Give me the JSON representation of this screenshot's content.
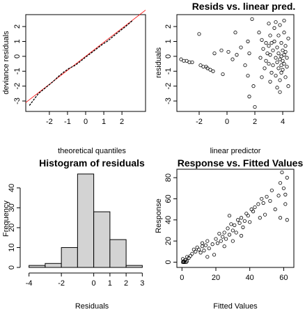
{
  "chart_data": [
    {
      "type": "line",
      "title": "",
      "xlabel": "theoretical quantiles",
      "ylabel": "deviance residuals",
      "xlim": [
        -3.3,
        3.3
      ],
      "ylim": [
        -3.7,
        2.8
      ],
      "xticks": [
        -2,
        -1,
        0,
        1,
        2
      ],
      "yticks": [
        -3,
        -2,
        -1,
        0,
        1,
        2
      ],
      "series": [
        {
          "role": "reference",
          "color": "#ff0000",
          "x": [
            -3.3,
            3.3
          ],
          "y": [
            -3.1,
            3.1
          ]
        },
        {
          "role": "qq",
          "color": "#000000",
          "x": [
            -3.1,
            -2.6,
            -2.2,
            -1.8,
            -1.5,
            -1.2,
            -0.9,
            -0.6,
            -0.3,
            0.0,
            0.3,
            0.6,
            0.9,
            1.2,
            1.5,
            1.8,
            2.2,
            2.6
          ],
          "y": [
            -3.3,
            -2.5,
            -2.1,
            -1.7,
            -1.35,
            -1.05,
            -0.8,
            -0.62,
            -0.35,
            -0.05,
            0.22,
            0.5,
            0.78,
            1.02,
            1.32,
            1.62,
            2.0,
            2.42
          ]
        }
      ]
    },
    {
      "type": "scatter",
      "title": "Resids vs. linear pred.",
      "xlabel": "linear predictor",
      "ylabel": "residuals",
      "xlim": [
        -3.6,
        4.8
      ],
      "ylim": [
        -3.7,
        2.8
      ],
      "xticks": [
        -2,
        0,
        2,
        4
      ],
      "yticks": [
        -3,
        -2,
        -1,
        0,
        1,
        2
      ],
      "points": [
        [
          -3.3,
          -0.2
        ],
        [
          -3.1,
          -0.3
        ],
        [
          -2.9,
          -0.3
        ],
        [
          -2.7,
          -0.4
        ],
        [
          -2.5,
          -0.4
        ],
        [
          -1.9,
          -0.6
        ],
        [
          -1.7,
          -0.7
        ],
        [
          -1.5,
          -0.7
        ],
        [
          -1.4,
          -0.8
        ],
        [
          -1.2,
          -0.9
        ],
        [
          -1.0,
          -1.0
        ],
        [
          -0.3,
          -1.2
        ],
        [
          -0.9,
          0.2
        ],
        [
          -0.4,
          0.4
        ],
        [
          0.1,
          0.3
        ],
        [
          0.7,
          0.1
        ],
        [
          0.4,
          -0.2
        ],
        [
          1.0,
          0.6
        ],
        [
          -2.0,
          1.5
        ],
        [
          0.6,
          1.6
        ],
        [
          1.5,
          1.0
        ],
        [
          1.6,
          0.2
        ],
        [
          1.3,
          -0.6
        ],
        [
          1.5,
          -1.3
        ],
        [
          1.9,
          -2.0
        ],
        [
          1.6,
          -2.7
        ],
        [
          2.0,
          -3.4
        ],
        [
          1.8,
          2.5
        ],
        [
          2.3,
          1.6
        ],
        [
          2.5,
          1.1
        ],
        [
          2.6,
          0.5
        ],
        [
          2.4,
          -0.1
        ],
        [
          2.7,
          -0.8
        ],
        [
          2.5,
          -1.4
        ],
        [
          2.8,
          0.9
        ],
        [
          2.8,
          -0.3
        ],
        [
          3.0,
          2.2
        ],
        [
          3.1,
          1.4
        ],
        [
          3.0,
          0.7
        ],
        [
          3.1,
          0.1
        ],
        [
          3.0,
          -0.5
        ],
        [
          3.2,
          -1.1
        ],
        [
          3.1,
          -1.7
        ],
        [
          3.3,
          0.4
        ],
        [
          3.3,
          -0.6
        ],
        [
          3.4,
          1.9
        ],
        [
          3.4,
          1.0
        ],
        [
          3.5,
          -0.1
        ],
        [
          3.5,
          -1.3
        ],
        [
          3.6,
          0.6
        ],
        [
          3.6,
          -0.4
        ],
        [
          3.6,
          -2.1
        ],
        [
          3.7,
          1.4
        ],
        [
          3.7,
          0.2
        ],
        [
          3.7,
          -0.8
        ],
        [
          3.8,
          2.1
        ],
        [
          3.8,
          -0.2
        ],
        [
          3.8,
          -1.6
        ],
        [
          3.9,
          0.9
        ],
        [
          3.9,
          0.0
        ],
        [
          3.9,
          -0.6
        ],
        [
          3.9,
          -1.1
        ],
        [
          4.0,
          0.4
        ],
        [
          4.0,
          -0.3
        ],
        [
          4.0,
          -0.9
        ],
        [
          4.1,
          1.6
        ],
        [
          4.1,
          0.1
        ],
        [
          4.1,
          -0.5
        ],
        [
          4.2,
          0.7
        ],
        [
          4.2,
          -1.4
        ],
        [
          4.3,
          -0.1
        ],
        [
          4.3,
          -0.7
        ],
        [
          4.4,
          1.2
        ],
        [
          4.4,
          -2.0
        ],
        [
          4.1,
          2.4
        ],
        [
          3.8,
          -2.4
        ],
        [
          3.5,
          2.3
        ],
        [
          3.2,
          0.9
        ],
        [
          2.9,
          0.2
        ],
        [
          4.2,
          0.3
        ]
      ]
    },
    {
      "type": "bar",
      "title": "Histogram of residuals",
      "xlabel": "Residuals",
      "ylabel": "Frequency",
      "xlim": [
        -4.2,
        3.2
      ],
      "ylim": [
        0,
        48
      ],
      "xticks": [
        -4,
        -2,
        0,
        1,
        2,
        3
      ],
      "yticks": [
        0,
        10,
        20,
        30,
        40
      ],
      "bins": [
        [
          -4,
          -3
        ],
        [
          -3,
          -2
        ],
        [
          -2,
          -1
        ],
        [
          -1,
          0
        ],
        [
          0,
          1
        ],
        [
          1,
          2
        ],
        [
          2,
          3
        ]
      ],
      "values": [
        1,
        2,
        10,
        47,
        28,
        14,
        1
      ]
    },
    {
      "type": "scatter",
      "title": "Response vs. Fitted Values",
      "xlabel": "Fitted Values",
      "ylabel": "Response",
      "xlim": [
        -3,
        66
      ],
      "ylim": [
        -5,
        88
      ],
      "xticks": [
        0,
        20,
        40,
        60
      ],
      "yticks": [
        0,
        20,
        40,
        60,
        80
      ],
      "points": [
        [
          0.5,
          0
        ],
        [
          1,
          1
        ],
        [
          1.5,
          0
        ],
        [
          2,
          2
        ],
        [
          0.5,
          3
        ],
        [
          3,
          1
        ],
        [
          1,
          0
        ],
        [
          2.5,
          0
        ],
        [
          4,
          4
        ],
        [
          3,
          5
        ],
        [
          5,
          6
        ],
        [
          6,
          8
        ],
        [
          8,
          10
        ],
        [
          7,
          12
        ],
        [
          10,
          12
        ],
        [
          12,
          15
        ],
        [
          11,
          9
        ],
        [
          9,
          14
        ],
        [
          13,
          11
        ],
        [
          14,
          16
        ],
        [
          15,
          20
        ],
        [
          16,
          13
        ],
        [
          18,
          17
        ],
        [
          20,
          22
        ],
        [
          21,
          18
        ],
        [
          22,
          27
        ],
        [
          23,
          20
        ],
        [
          24,
          24
        ],
        [
          25,
          28
        ],
        [
          26,
          22
        ],
        [
          27,
          32
        ],
        [
          28,
          26
        ],
        [
          29,
          36
        ],
        [
          30,
          30
        ],
        [
          31,
          35
        ],
        [
          32,
          28
        ],
        [
          28,
          44
        ],
        [
          33,
          40
        ],
        [
          34,
          37
        ],
        [
          35,
          42
        ],
        [
          36,
          33
        ],
        [
          37,
          39
        ],
        [
          38,
          46
        ],
        [
          39,
          44
        ],
        [
          40,
          38
        ],
        [
          41,
          50
        ],
        [
          42,
          48
        ],
        [
          43,
          52
        ],
        [
          45,
          55
        ],
        [
          46,
          42
        ],
        [
          47,
          60
        ],
        [
          48,
          56
        ],
        [
          49,
          45
        ],
        [
          50,
          62
        ],
        [
          52,
          58
        ],
        [
          53,
          68
        ],
        [
          55,
          50
        ],
        [
          57,
          63
        ],
        [
          58,
          75
        ],
        [
          59,
          85
        ],
        [
          60,
          70
        ],
        [
          61,
          64
        ],
        [
          62,
          80
        ],
        [
          58,
          42
        ],
        [
          62,
          40
        ],
        [
          61,
          55
        ],
        [
          19,
          7
        ],
        [
          15,
          5
        ],
        [
          12,
          18
        ],
        [
          25,
          15
        ],
        [
          30,
          20
        ],
        [
          35,
          25
        ]
      ]
    }
  ]
}
